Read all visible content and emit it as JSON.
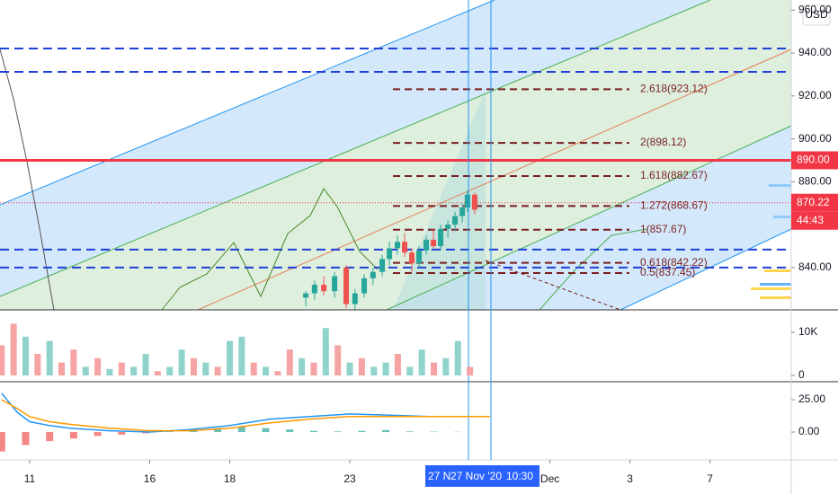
{
  "chart_data": [
    {
      "type": "candlestick",
      "currency": "USD",
      "x": [
        6.9,
        7.12,
        7.35,
        7.62,
        7.91,
        8.13,
        8.36,
        8.58,
        8.81,
        8.99,
        9.19,
        9.37,
        9.55,
        9.73,
        9.91,
        10.09,
        10.27,
        10.45,
        10.63,
        10.81,
        10.94,
        11.12
      ],
      "open": [
        826,
        828,
        832,
        829,
        840,
        823,
        828,
        835,
        838,
        844,
        849,
        852,
        847,
        842,
        848,
        853,
        850,
        858,
        860,
        864,
        868,
        874
      ],
      "high": [
        829,
        834,
        836,
        838,
        841,
        830,
        837,
        840,
        846,
        852,
        855,
        856,
        849,
        850,
        855,
        858,
        860,
        862,
        866,
        870,
        876,
        875
      ],
      "low": [
        822,
        825,
        827,
        826,
        821,
        820,
        826,
        832,
        836,
        841,
        846,
        845,
        838,
        840,
        846,
        849,
        848,
        854,
        857,
        861,
        866,
        865
      ],
      "close": [
        828,
        832,
        829,
        836,
        823,
        828,
        835,
        838,
        844,
        849,
        852,
        847,
        842,
        848,
        853,
        850,
        858,
        860,
        864,
        868,
        874,
        867
      ],
      "up_color": "#26a69a",
      "down_color": "#ef5350",
      "xlim": [
        -0.74,
        19.03
      ],
      "xticks": [
        {
          "value": 0,
          "label": "11"
        },
        {
          "value": 3,
          "label": "16"
        },
        {
          "value": 5,
          "label": "18"
        },
        {
          "value": 8,
          "label": "23"
        },
        {
          "value": 13,
          "label": "Dec"
        },
        {
          "value": 15,
          "label": "3"
        },
        {
          "value": 17,
          "label": "7"
        }
      ],
      "ylim": [
        820.3,
        964.7
      ],
      "yticks": [
        {
          "value": 840,
          "label": "840.00"
        },
        {
          "value": 860,
          "label": "860.00"
        },
        {
          "value": 880,
          "label": "880.00"
        },
        {
          "value": 900,
          "label": "900.00"
        },
        {
          "value": 920,
          "label": "920.00"
        },
        {
          "value": 940,
          "label": "940.00"
        },
        {
          "value": 960,
          "label": "960.00"
        }
      ],
      "dashed_levels": [
        942.1,
        931.2,
        848.4,
        840.0
      ],
      "dashed_color": "#1e3fd8",
      "fib_levels": [
        {
          "value": 923.12,
          "label": "2.618(923.12)"
        },
        {
          "value": 898.12,
          "label": "2(898.12)"
        },
        {
          "value": 882.67,
          "label": "1.618(882.67)"
        },
        {
          "value": 868.67,
          "label": "1.272(868.67)"
        },
        {
          "value": 857.67,
          "label": "1(857.67)"
        },
        {
          "value": 842.22,
          "label": "0.618(842.22)"
        },
        {
          "value": 837.45,
          "label": "0.5(837.45)"
        }
      ],
      "fib_color": "#7a1f1f",
      "horizontal_line": {
        "value": 890,
        "label": "890.00",
        "color": "#f23645"
      },
      "last_price": 870.22,
      "countdown": "44:43",
      "last_color": "#f23645",
      "crosshair_labels": [
        "27 N",
        "27 Nov '20",
        "10:30"
      ]
    },
    {
      "type": "bar",
      "x": [
        -0.7,
        -0.4,
        -0.1,
        0.2,
        0.5,
        0.8,
        1.1,
        1.4,
        1.7,
        2.0,
        2.3,
        2.6,
        2.9,
        3.2,
        3.5,
        3.8,
        4.1,
        4.4,
        4.7,
        5.0,
        5.3,
        5.6,
        5.9,
        6.2,
        6.5,
        6.8,
        7.1,
        7.4,
        7.7,
        8.0,
        8.3,
        8.6,
        8.9,
        9.2,
        9.5,
        9.8,
        10.1,
        10.4,
        10.7,
        11.0
      ],
      "values": [
        7000,
        12000,
        9000,
        5000,
        8000,
        3000,
        6000,
        2000,
        4000,
        1500,
        3000,
        2000,
        5000,
        1000,
        2000,
        6000,
        4000,
        3000,
        2000,
        8000,
        9000,
        3000,
        2000,
        1000,
        6000,
        4000,
        3000,
        11000,
        7000,
        3000,
        4000,
        2000,
        3000,
        5000,
        2000,
        6000,
        3000,
        4000,
        8000,
        2000
      ],
      "colors": [
        "#f5a3a3",
        "#f5a3a3",
        "#8fd3cb",
        "#f5a3a3",
        "#8fd3cb",
        "#f5a3a3",
        "#f5a3a3",
        "#8fd3cb",
        "#f5a3a3",
        "#8fd3cb",
        "#f5a3a3",
        "#8fd3cb",
        "#8fd3cb",
        "#f5a3a3",
        "#8fd3cb",
        "#8fd3cb",
        "#f5a3a3",
        "#8fd3cb",
        "#f5a3a3",
        "#8fd3cb",
        "#8fd3cb",
        "#f5a3a3",
        "#8fd3cb",
        "#f5a3a3",
        "#f5a3a3",
        "#8fd3cb",
        "#f5a3a3",
        "#8fd3cb",
        "#f5a3a3",
        "#8fd3cb",
        "#f5a3a3",
        "#8fd3cb",
        "#8fd3cb",
        "#f5a3a3",
        "#8fd3cb",
        "#8fd3cb",
        "#f5a3a3",
        "#8fd3cb",
        "#8fd3cb",
        "#f5a3a3"
      ],
      "xlim": [
        -0.74,
        19.03
      ],
      "ylim": [
        -1458,
        15208
      ],
      "yticks": [
        0,
        {
          "value": 10000,
          "label": "10K"
        }
      ]
    },
    {
      "type": "line",
      "x": [
        -0.7,
        -0.3,
        0,
        0.5,
        1,
        2,
        3,
        4,
        5,
        6,
        7,
        8,
        9,
        10,
        11,
        11.5
      ],
      "series": [
        {
          "color": "#2196f3",
          "values": [
            30,
            15,
            8,
            5,
            3,
            1,
            0,
            2,
            5,
            10,
            12,
            14,
            13,
            12,
            12,
            12
          ]
        },
        {
          "color": "#ff9800",
          "values": [
            25,
            18,
            12,
            8,
            6,
            3,
            1,
            1,
            3,
            7,
            10,
            12,
            12,
            12,
            12,
            12
          ]
        }
      ],
      "histogram_x": [
        -0.7,
        -0.1,
        0.5,
        1.1,
        1.7,
        2.3,
        2.9,
        3.5,
        4.1,
        4.7,
        5.3,
        5.9,
        6.5,
        7.1,
        7.7,
        8.3,
        8.9,
        9.5,
        10.1,
        10.7
      ],
      "histogram": [
        -15,
        -10,
        -7,
        -5,
        -3,
        -2,
        -1,
        0.5,
        2,
        3,
        4,
        3,
        2,
        1,
        0.5,
        1,
        1.5,
        0.5,
        0.3,
        0.2
      ],
      "pos_color": "#26a69a",
      "neg_color": "#ef5350",
      "xlim": [
        -0.74,
        19.03
      ],
      "ylim": [
        -21.5,
        38.9
      ],
      "yticks": [
        {
          "value": 0,
          "label": "0.00"
        },
        {
          "value": 25,
          "label": "25.00"
        }
      ]
    }
  ]
}
